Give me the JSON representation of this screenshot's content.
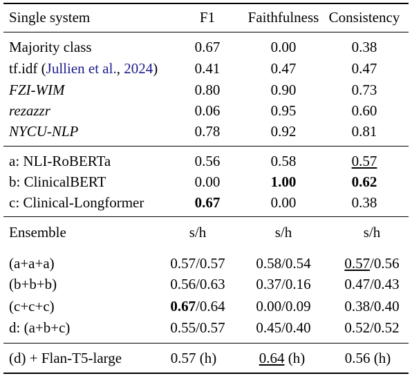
{
  "header": {
    "col0": "Single system",
    "col1": "F1",
    "col2": "Faithfulness",
    "col3": "Consistency"
  },
  "single_systems": [
    {
      "name": "Majority class",
      "f1": "0.67",
      "faith": "0.00",
      "cons": "0.38"
    },
    {
      "name_pre": "tf.idf (",
      "cite_author": "Jullien et al.",
      "cite_sep": ", ",
      "cite_year": "2024",
      "name_post": ")",
      "f1": "0.41",
      "faith": "0.47",
      "cons": "0.47"
    },
    {
      "name": "FZI-WIM",
      "f1": "0.80",
      "faith": "0.90",
      "cons": "0.73"
    },
    {
      "name": "rezazzr",
      "f1": "0.06",
      "faith": "0.95",
      "cons": "0.60"
    },
    {
      "name": "NYCU-NLP",
      "f1": "0.78",
      "faith": "0.92",
      "cons": "0.81"
    }
  ],
  "base_models": [
    {
      "name": "a: NLI-RoBERTa",
      "f1": "0.56",
      "faith": "0.58",
      "cons": "0.57"
    },
    {
      "name": "b: ClinicalBERT",
      "f1": "0.00",
      "faith": "1.00",
      "cons": "0.62"
    },
    {
      "name": "c: Clinical-Longformer",
      "f1": "0.67",
      "faith": "0.00",
      "cons": "0.38"
    }
  ],
  "ensemble_header": {
    "col0": "Ensemble",
    "col1": "s/h",
    "col2": "s/h",
    "col3": "s/h"
  },
  "ensembles": [
    {
      "name": "(a+a+a)",
      "f1_s": "0.57",
      "f1_h": "0.57",
      "faith_s": "0.58",
      "faith_h": "0.54",
      "cons_s": "0.57",
      "cons_h": "0.56"
    },
    {
      "name": "(b+b+b)",
      "f1_s": "0.56",
      "f1_h": "0.63",
      "faith_s": "0.37",
      "faith_h": "0.16",
      "cons_s": "0.47",
      "cons_h": "0.43"
    },
    {
      "name": "(c+c+c)",
      "f1_s": "0.67",
      "f1_h": "0.64",
      "faith_s": "0.00",
      "faith_h": "0.09",
      "cons_s": "0.38",
      "cons_h": "0.40"
    },
    {
      "name": "d: (a+b+c)",
      "f1_s": "0.55",
      "f1_h": "0.57",
      "faith_s": "0.45",
      "faith_h": "0.40",
      "cons_s": "0.52",
      "cons_h": "0.52"
    }
  ],
  "final": {
    "name": "(d) + Flan-T5-large",
    "f1": "0.57",
    "faith": "0.64",
    "cons": "0.56",
    "suffix": " (h)"
  },
  "separators": {
    "slash": "/"
  }
}
